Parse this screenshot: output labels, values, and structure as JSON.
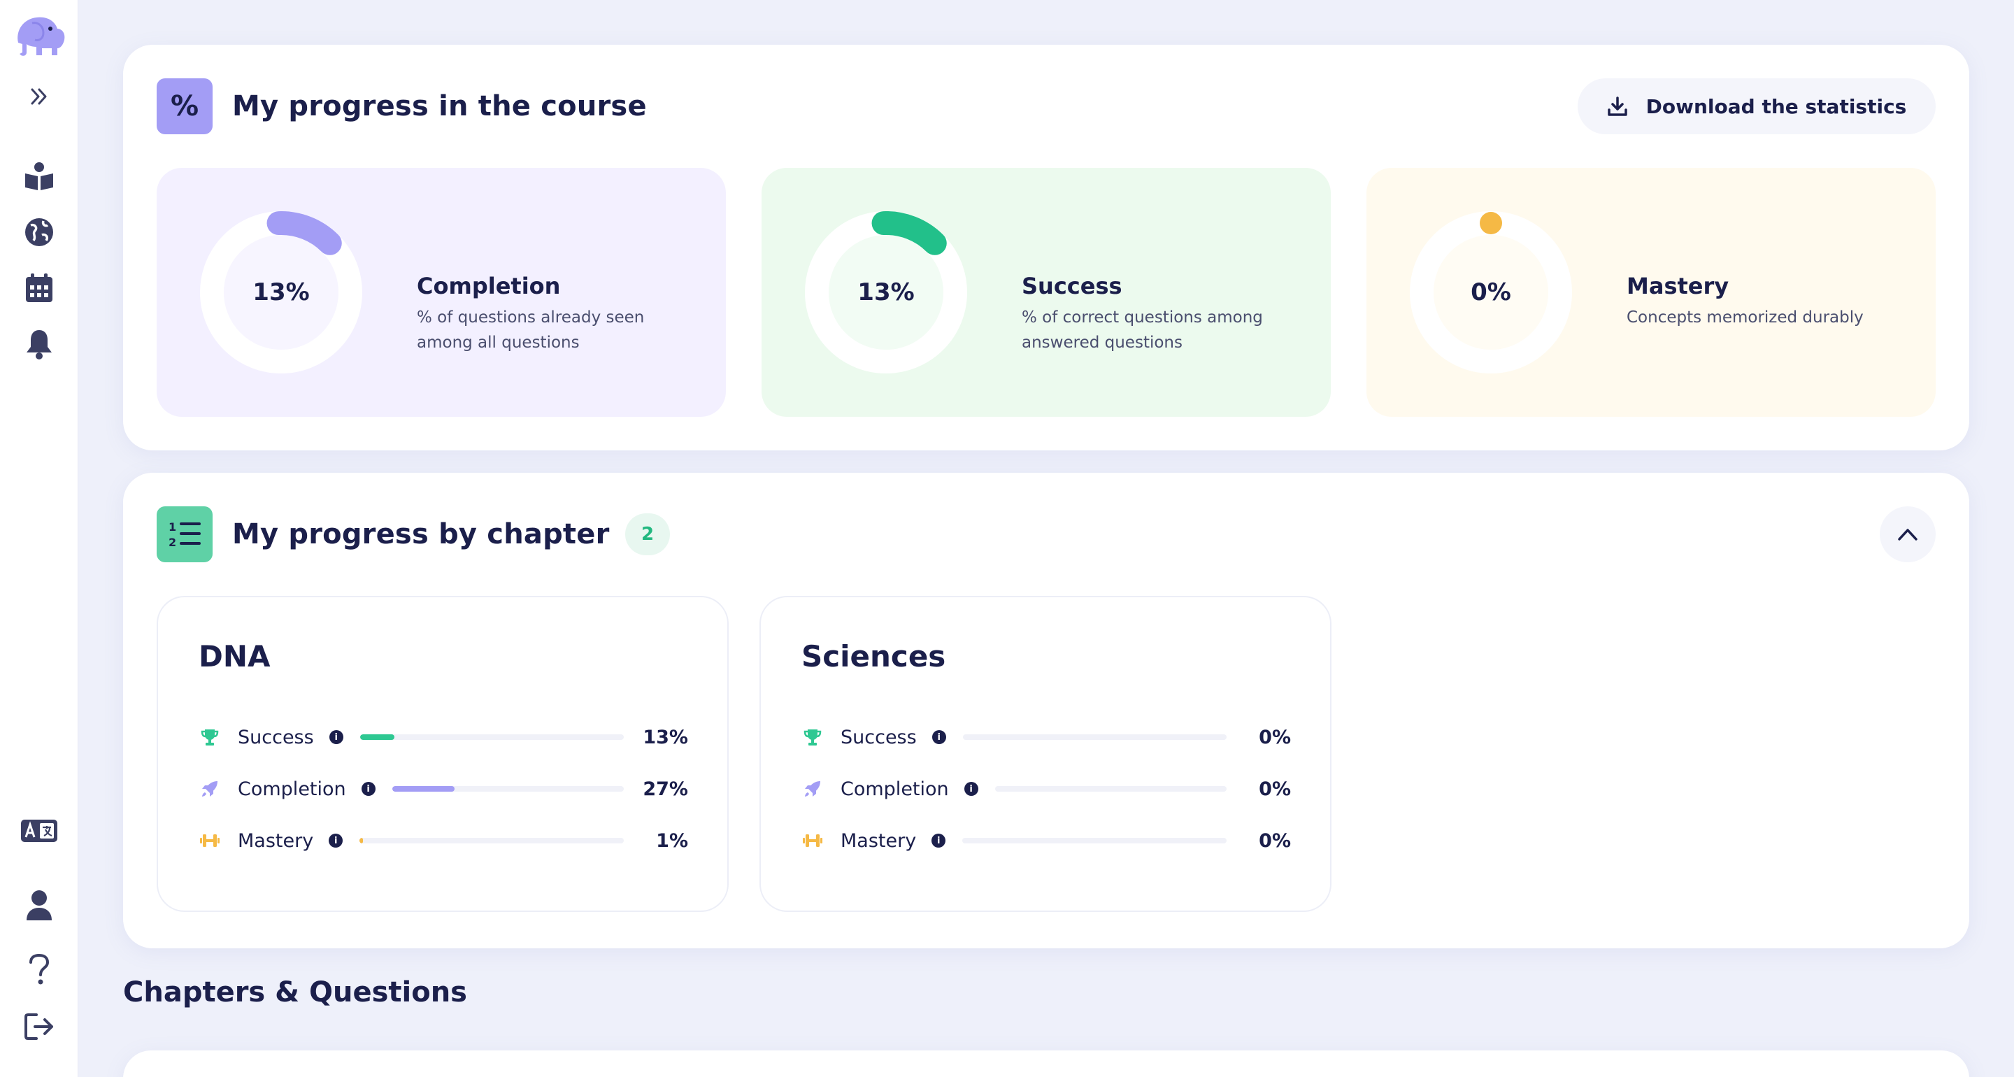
{
  "sidebar": {
    "items": [
      {
        "name": "logo",
        "icon": "elephant-icon"
      },
      {
        "name": "expand",
        "icon": "double-chevron-right-icon"
      },
      {
        "name": "courses",
        "icon": "book-reader-icon"
      },
      {
        "name": "explore",
        "icon": "globe-icon"
      },
      {
        "name": "calendar",
        "icon": "calendar-icon"
      },
      {
        "name": "notifications",
        "icon": "bell-icon"
      },
      {
        "name": "language",
        "icon": "translate-icon"
      },
      {
        "name": "profile",
        "icon": "user-icon"
      },
      {
        "name": "help",
        "icon": "question-icon"
      },
      {
        "name": "logout",
        "icon": "logout-icon"
      }
    ]
  },
  "course_progress": {
    "title": "My progress in the course",
    "icon_text": "%",
    "download_label": "Download the statistics",
    "stats": [
      {
        "value": 0.13,
        "label": "13%",
        "title": "Completion",
        "desc": "% of questions already seen among all questions",
        "color": "#a39df5"
      },
      {
        "value": 0.13,
        "label": "13%",
        "title": "Success",
        "desc": "% of correct questions among answered questions",
        "color": "#22c08a"
      },
      {
        "value": 0.0,
        "label": "0%",
        "title": "Mastery",
        "desc": "Concepts memorized durably",
        "color": "#f5b945"
      }
    ]
  },
  "chapter_progress": {
    "title": "My progress by chapter",
    "count": "2",
    "chapters": [
      {
        "title": "DNA",
        "metrics": [
          {
            "label": "Success",
            "value": "13%",
            "fraction": 0.13,
            "color": "#2ec892",
            "icon": "trophy-icon"
          },
          {
            "label": "Completion",
            "value": "27%",
            "fraction": 0.27,
            "color": "#a39df5",
            "icon": "rocket-icon"
          },
          {
            "label": "Mastery",
            "value": "1%",
            "fraction": 0.01,
            "color": "#f5b945",
            "icon": "dumbbell-icon"
          }
        ]
      },
      {
        "title": "Sciences",
        "metrics": [
          {
            "label": "Success",
            "value": "0%",
            "fraction": 0.0,
            "color": "#2ec892",
            "icon": "trophy-icon"
          },
          {
            "label": "Completion",
            "value": "0%",
            "fraction": 0.0,
            "color": "#a39df5",
            "icon": "rocket-icon"
          },
          {
            "label": "Mastery",
            "value": "0%",
            "fraction": 0.0,
            "color": "#f5b945",
            "icon": "dumbbell-icon"
          }
        ]
      }
    ]
  },
  "chapters_questions": {
    "title": "Chapters & Questions"
  }
}
